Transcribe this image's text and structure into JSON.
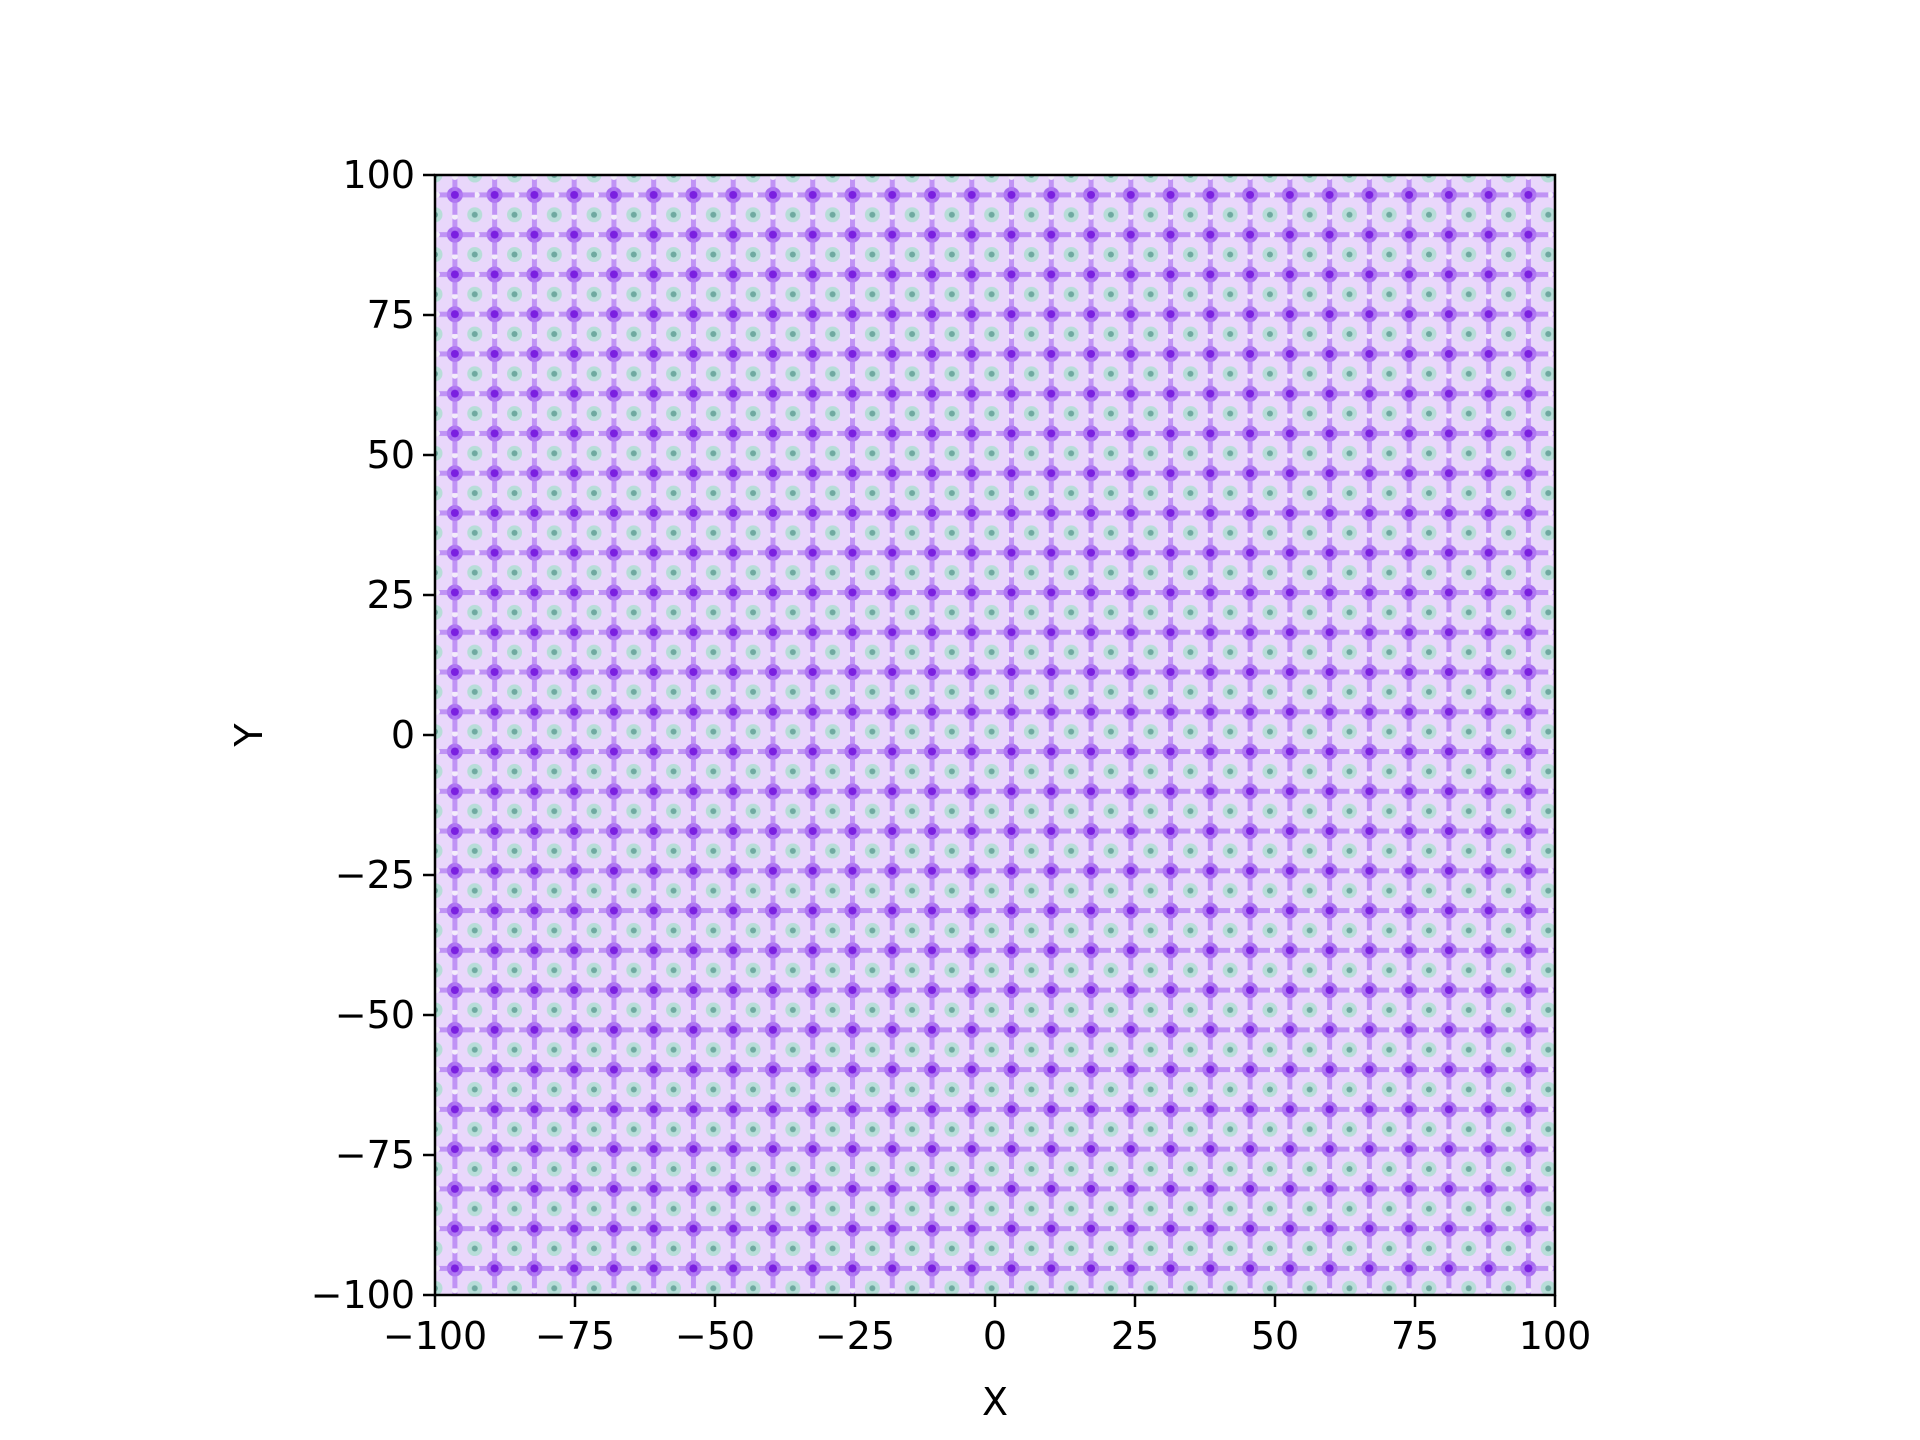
{
  "chart_data": {
    "type": "heatmap",
    "title": "",
    "xlabel": "X",
    "ylabel": "Y",
    "xlim": [
      -100,
      100
    ],
    "ylim": [
      -100,
      100
    ],
    "xticks": [
      -100,
      -75,
      -50,
      -25,
      0,
      25,
      50,
      75,
      100
    ],
    "yticks": [
      -100,
      -75,
      -50,
      -25,
      0,
      25,
      50,
      75,
      100
    ],
    "xtick_labels": [
      "−100",
      "−75",
      "−50",
      "−25",
      "0",
      "25",
      "50",
      "75",
      "100"
    ],
    "ytick_labels": [
      "−100",
      "−75",
      "−50",
      "−25",
      "0",
      "25",
      "50",
      "75",
      "100"
    ],
    "grid": false,
    "pattern": {
      "period_x": 7.1,
      "period_y": 7.1,
      "note_colormap": [
        "#7a1fe0",
        "#c99cf3",
        "#efe6f8",
        "#b7ddd8",
        "#5f9c93"
      ]
    }
  }
}
